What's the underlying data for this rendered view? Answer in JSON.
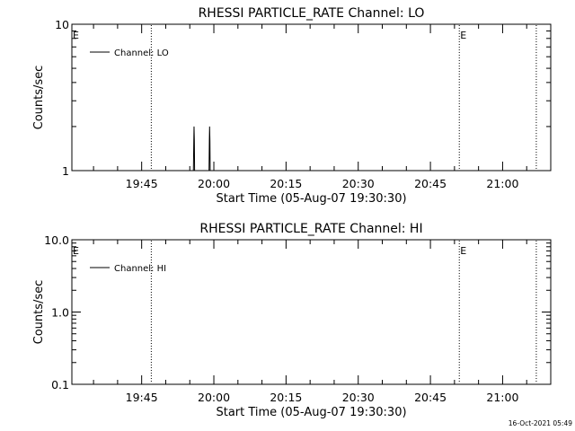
{
  "chart_data": [
    {
      "type": "line",
      "title": "RHESSI PARTICLE_RATE Channel: LO",
      "xlabel": "Start Time (05-Aug-07 19:30:30)",
      "ylabel": "Counts/sec",
      "yscale": "log",
      "ylim": [
        1,
        10
      ],
      "y_ticks": [
        1,
        10
      ],
      "y_tick_labels": [
        "1",
        "10"
      ],
      "xlim": [
        "19:30:30",
        "21:10:00"
      ],
      "x_ticks": [
        "19:45",
        "20:00",
        "20:15",
        "20:30",
        "20:45",
        "21:00"
      ],
      "legend": {
        "position": "top-left",
        "entries": [
          "Channel: LO"
        ]
      },
      "series": [
        {
          "name": "Channel: LO",
          "x": [
            "19:55:45",
            "19:55:50",
            "19:55:53",
            "19:55:57",
            "19:56:00",
            "19:59:00",
            "19:59:04",
            "19:59:07",
            "19:59:11",
            "19:59:14"
          ],
          "y": [
            1,
            1.6,
            2,
            1.6,
            1,
            1,
            1.6,
            2,
            1.6,
            1
          ]
        }
      ],
      "vertical_lines": [
        "19:47:00",
        "20:51:00",
        "21:07:00"
      ],
      "markers": [
        {
          "text": "E",
          "x": "19:30:30"
        },
        {
          "text": "E",
          "x": "20:51:00"
        }
      ]
    },
    {
      "type": "line",
      "title": "RHESSI PARTICLE_RATE Channel: HI",
      "xlabel": "Start Time (05-Aug-07 19:30:30)",
      "ylabel": "Counts/sec",
      "yscale": "log",
      "ylim": [
        0.1,
        10
      ],
      "y_ticks": [
        0.1,
        1,
        10
      ],
      "y_tick_labels": [
        "0.1",
        "1.0",
        "10.0"
      ],
      "xlim": [
        "19:30:30",
        "21:10:00"
      ],
      "x_ticks": [
        "19:45",
        "20:00",
        "20:15",
        "20:30",
        "20:45",
        "21:00"
      ],
      "legend": {
        "position": "top-left",
        "entries": [
          "Channel: HI"
        ]
      },
      "series": [
        {
          "name": "Channel: HI",
          "x": [],
          "y": []
        }
      ],
      "vertical_lines": [
        "19:47:00",
        "20:51:00",
        "21:07:00"
      ],
      "markers": [
        {
          "text": "E",
          "x": "19:30:30"
        },
        {
          "text": "E",
          "x": "20:51:00"
        }
      ]
    }
  ],
  "footer": {
    "timestamp": "16-Oct-2021 05:49"
  }
}
